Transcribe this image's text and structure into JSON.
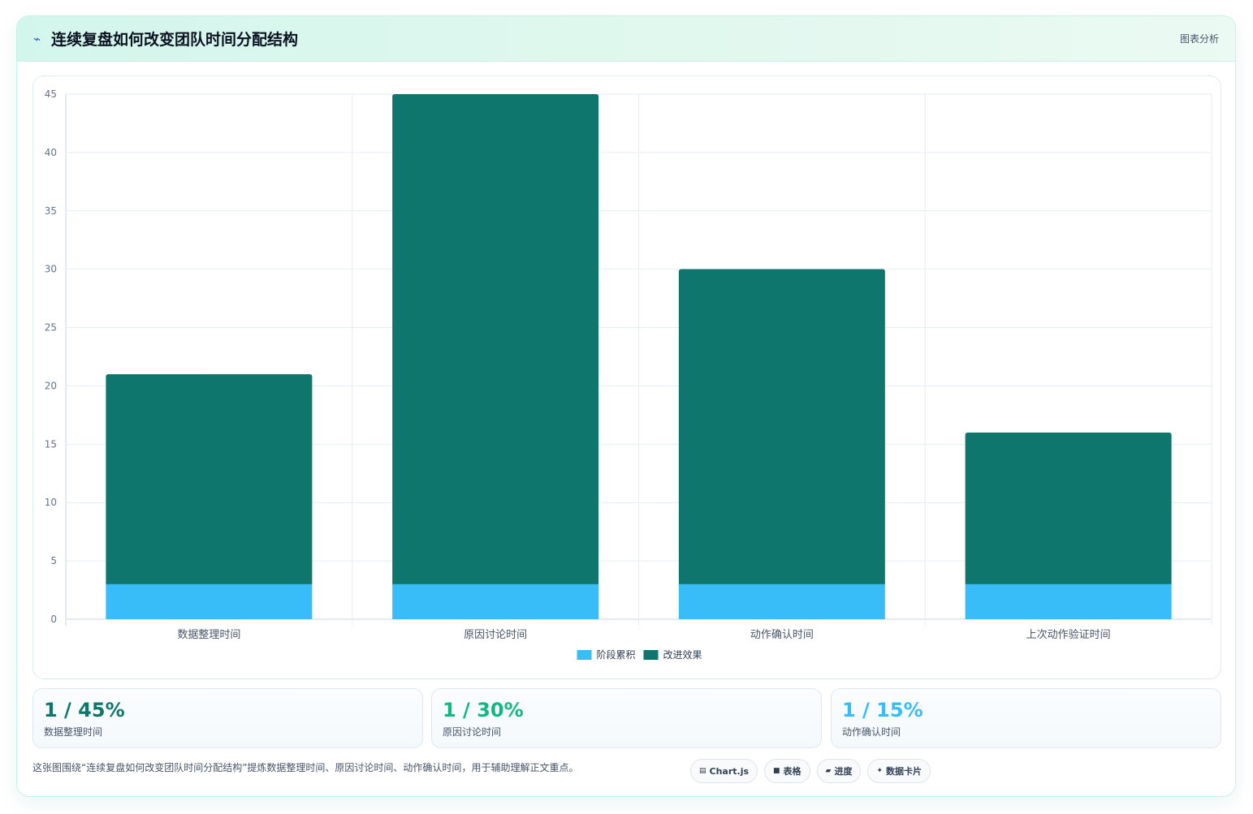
{
  "header": {
    "icon": "bolt-icon",
    "title": "连续复盘如何改变团队时间分配结构",
    "tag": "图表分析"
  },
  "colors": {
    "stage": "#38bdf8",
    "effect": "#0f766e",
    "green": "#10b981",
    "sky": "#38bdf8"
  },
  "chart_data": {
    "type": "bar",
    "stacked": true,
    "categories": [
      "数据整理时间",
      "原因讨论时间",
      "动作确认时间",
      "上次动作验证时间"
    ],
    "series": [
      {
        "name": "阶段累积",
        "values": [
          3,
          3,
          3,
          3
        ],
        "color": "#38bdf8"
      },
      {
        "name": "改进效果",
        "values": [
          18,
          42,
          27,
          13
        ],
        "color": "#0f766e"
      }
    ],
    "ylim": [
      0,
      45
    ],
    "yticks": [
      0,
      5,
      10,
      15,
      20,
      25,
      30,
      35,
      40,
      45
    ],
    "grid": true,
    "legend": "bottom"
  },
  "stats": [
    {
      "value": "1 / 45%",
      "label": "数据整理时间",
      "color": "#0f766e"
    },
    {
      "value": "1 / 30%",
      "label": "原因讨论时间",
      "color": "#10b981"
    },
    {
      "value": "1 / 15%",
      "label": "动作确认时间",
      "color": "#38bdf8"
    }
  ],
  "footer": {
    "description": "这张图围绕“连续复盘如何改变团队时间分配结构”提炼数据整理时间、原因讨论时间、动作确认时间，用于辅助理解正文重点。",
    "chips": [
      {
        "icon": "chart-icon",
        "glyph": "▤",
        "label": "Chart.js"
      },
      {
        "icon": "table-icon",
        "glyph": "■",
        "label": "表格"
      },
      {
        "icon": "progress-icon",
        "glyph": "▰",
        "label": "进度"
      },
      {
        "icon": "sparkle-icon",
        "glyph": "✦",
        "label": "数据卡片"
      }
    ]
  }
}
